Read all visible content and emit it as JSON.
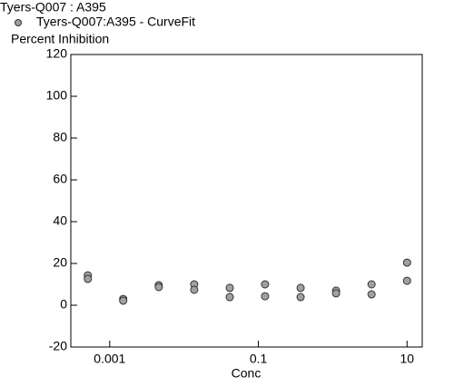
{
  "chart_data": {
    "type": "scatter",
    "title": "Tyers-Q007  : A395",
    "ylabel": "Percent Inhibition",
    "xlabel": "Conc",
    "xscale": "log",
    "xlim": [
      0.0003,
      16
    ],
    "xticks": [
      0.001,
      0.1,
      10
    ],
    "ylim": [
      -20,
      120
    ],
    "yticks": [
      -20,
      0,
      20,
      40,
      60,
      80,
      100,
      120
    ],
    "grid": false,
    "legend": "top-left",
    "series": [
      {
        "name": "Tyers-Q007:A395 - CurveFit",
        "color": "#a0a0a0",
        "x": [
          0.000508,
          0.000508,
          0.00152,
          0.00152,
          0.00457,
          0.00457,
          0.0137,
          0.0137,
          0.0412,
          0.0412,
          0.123,
          0.123,
          0.37,
          0.37,
          1.11,
          1.11,
          3.33,
          3.33,
          10,
          10
        ],
        "values": [
          14.3,
          12.6,
          3,
          2.2,
          9.6,
          8.7,
          10,
          7.4,
          8.3,
          3.9,
          10,
          4.3,
          8.3,
          3.9,
          7,
          5.7,
          10,
          5.2,
          20.4,
          11.7
        ]
      }
    ]
  }
}
